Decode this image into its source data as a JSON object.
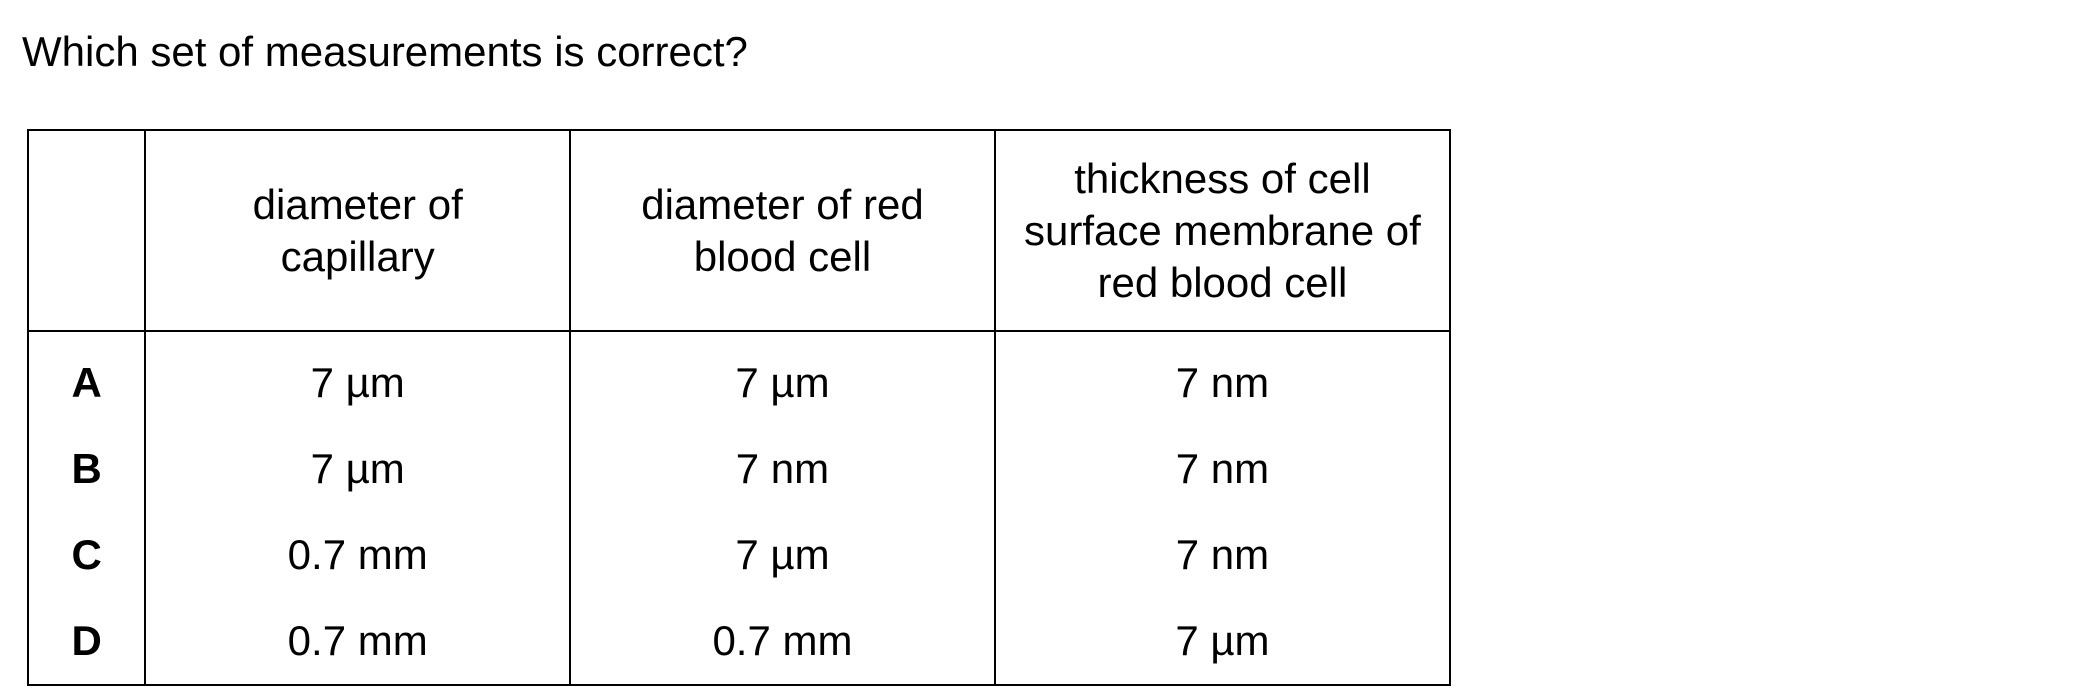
{
  "question": "Which set of measurements is correct?",
  "table": {
    "headers": [
      "",
      "diameter of capillary",
      "diameter of red blood cell",
      "thickness of cell surface membrane of red blood cell"
    ],
    "rows": [
      {
        "option": "A",
        "values": [
          "7 µm",
          "7 µm",
          "7 nm"
        ]
      },
      {
        "option": "B",
        "values": [
          "7 µm",
          "7 nm",
          "7 nm"
        ]
      },
      {
        "option": "C",
        "values": [
          "0.7 mm",
          "7 µm",
          "7 nm"
        ]
      },
      {
        "option": "D",
        "values": [
          "0.7 mm",
          "0.7 mm",
          "7 µm"
        ]
      }
    ]
  }
}
